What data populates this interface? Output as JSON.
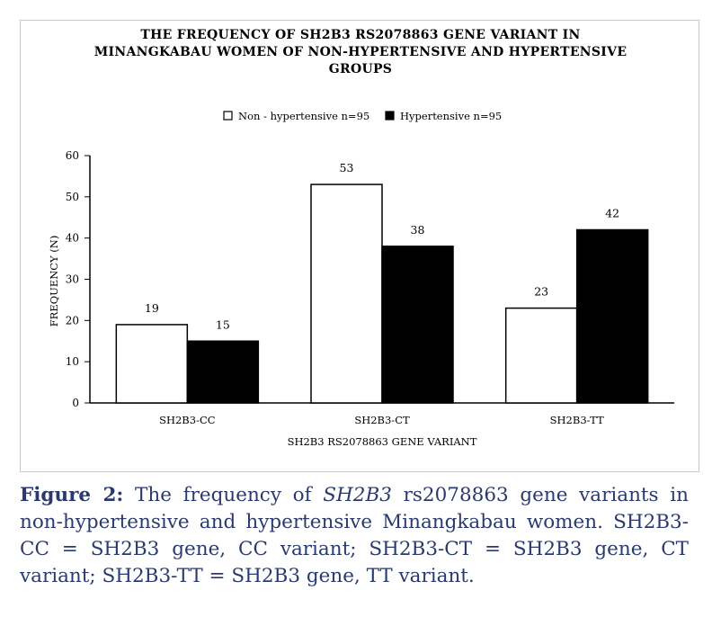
{
  "chart": {
    "title_lines": [
      "THE FREQUENCY OF SH2B3 RS2078863 GENE VARIANT IN",
      "MINANGKABAU WOMEN OF NON-HYPERTENSIVE AND HYPERTENSIVE",
      "GROUPS"
    ]
  },
  "chart_data": {
    "type": "bar",
    "title": "THE FREQUENCY OF SH2B3 RS2078863 GENE VARIANT IN MINANGKABAU WOMEN OF NON-HYPERTENSIVE AND HYPERTENSIVE GROUPS",
    "categories": [
      "SH2B3-CC",
      "SH2B3-CT",
      "SH2B3-TT"
    ],
    "series": [
      {
        "name": "Non - hypertensive n=95",
        "values": [
          19,
          53,
          23
        ],
        "color": "#ffffff"
      },
      {
        "name": "Hypertensive n=95",
        "values": [
          15,
          38,
          42
        ],
        "color": "#000000"
      }
    ],
    "xlabel": "SH2B3 RS2078863 GENE VARIANT",
    "ylabel": "FREQUENCY (N)",
    "ylim": [
      0,
      60
    ],
    "yticks": [
      "0",
      "10",
      "20",
      "30",
      "40",
      "50",
      "60"
    ],
    "grid": false,
    "legend_position": "top-center",
    "data_labels": true
  },
  "caption": {
    "label": "Figure 2:",
    "text_before": " The frequency of ",
    "gene": "SH2B3",
    "text_after": " rs2078863 gene variants in non-hypertensive and hypertensive Minangkabau women. SH2B3-CC = SH2B3 gene, CC variant; SH2B3-CT = SH2B3 gene, CT variant; SH2B3-TT = SH2B3 gene, TT variant."
  }
}
